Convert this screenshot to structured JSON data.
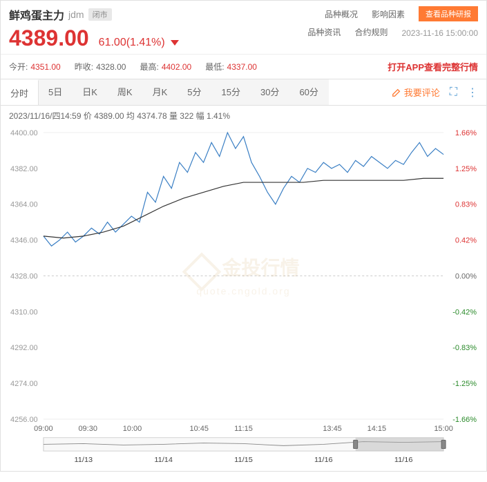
{
  "header": {
    "name": "鲜鸡蛋主力",
    "code": "jdm",
    "status": "闭市",
    "price": "4389.00",
    "change": "61.00(1.41%)",
    "price_color": "#d33",
    "links": {
      "variety": "品种概况",
      "factors": "影响因素",
      "news": "品种资讯",
      "rules": "合约规则"
    },
    "report_btn": "查看品种研报",
    "timestamp": "2023-11-16 15:00:00"
  },
  "stats": {
    "open_label": "今开:",
    "open_val": "4351.00",
    "prev_label": "昨收:",
    "prev_val": "4328.00",
    "high_label": "最高:",
    "high_val": "4402.00",
    "low_label": "最低:",
    "low_val": "4337.00",
    "open_color": "#d33",
    "prev_color": "#666",
    "high_color": "#d33",
    "low_color": "#d33",
    "app_promo": "打开APP查看完整行情",
    "app_color": "#d33"
  },
  "tabs": {
    "items": [
      "分时",
      "5日",
      "日K",
      "周K",
      "月K",
      "5分",
      "15分",
      "30分",
      "60分"
    ],
    "active": 0,
    "comment": "我要评论"
  },
  "chart_info": "2023/11/16/四14:59  价 4389.00  均 4374.78  量 322  幅 1.41%",
  "chart": {
    "type": "line",
    "y_left": [
      "4400.00",
      "4382.00",
      "4364.00",
      "4346.00",
      "4328.00",
      "4310.00",
      "4292.00",
      "4274.00",
      "4256.00"
    ],
    "y_right": [
      "1.66%",
      "1.25%",
      "0.83%",
      "0.42%",
      "0.00%",
      "-0.42%",
      "-0.83%",
      "-1.25%",
      "-1.66%"
    ],
    "y_min": 4256,
    "y_max": 4400,
    "x_labels": [
      "09:00",
      "09:30",
      "10:00",
      "10:45",
      "11:15",
      "13:45",
      "14:15",
      "15:00"
    ],
    "x_positions": [
      0,
      0.111,
      0.222,
      0.389,
      0.5,
      0.722,
      0.833,
      1.0
    ],
    "price_color": "#3a7fc4",
    "avg_color": "#333",
    "price_series": [
      [
        0,
        4348
      ],
      [
        0.02,
        4343
      ],
      [
        0.04,
        4346
      ],
      [
        0.06,
        4350
      ],
      [
        0.08,
        4345
      ],
      [
        0.1,
        4348
      ],
      [
        0.12,
        4352
      ],
      [
        0.14,
        4349
      ],
      [
        0.16,
        4355
      ],
      [
        0.18,
        4350
      ],
      [
        0.2,
        4354
      ],
      [
        0.22,
        4358
      ],
      [
        0.24,
        4355
      ],
      [
        0.26,
        4370
      ],
      [
        0.28,
        4365
      ],
      [
        0.3,
        4378
      ],
      [
        0.32,
        4372
      ],
      [
        0.34,
        4385
      ],
      [
        0.36,
        4380
      ],
      [
        0.38,
        4390
      ],
      [
        0.4,
        4385
      ],
      [
        0.42,
        4395
      ],
      [
        0.44,
        4388
      ],
      [
        0.46,
        4400
      ],
      [
        0.48,
        4392
      ],
      [
        0.5,
        4398
      ],
      [
        0.52,
        4385
      ],
      [
        0.54,
        4378
      ],
      [
        0.56,
        4370
      ],
      [
        0.58,
        4364
      ],
      [
        0.6,
        4372
      ],
      [
        0.62,
        4378
      ],
      [
        0.64,
        4375
      ],
      [
        0.66,
        4382
      ],
      [
        0.68,
        4380
      ],
      [
        0.7,
        4385
      ],
      [
        0.72,
        4382
      ],
      [
        0.74,
        4384
      ],
      [
        0.76,
        4380
      ],
      [
        0.78,
        4386
      ],
      [
        0.8,
        4383
      ],
      [
        0.82,
        4388
      ],
      [
        0.84,
        4385
      ],
      [
        0.86,
        4382
      ],
      [
        0.88,
        4386
      ],
      [
        0.9,
        4384
      ],
      [
        0.92,
        4390
      ],
      [
        0.94,
        4395
      ],
      [
        0.96,
        4388
      ],
      [
        0.98,
        4392
      ],
      [
        1.0,
        4389
      ]
    ],
    "avg_series": [
      [
        0,
        4348
      ],
      [
        0.05,
        4347
      ],
      [
        0.1,
        4348
      ],
      [
        0.15,
        4350
      ],
      [
        0.2,
        4353
      ],
      [
        0.25,
        4358
      ],
      [
        0.3,
        4363
      ],
      [
        0.35,
        4367
      ],
      [
        0.4,
        4370
      ],
      [
        0.45,
        4373
      ],
      [
        0.5,
        4375
      ],
      [
        0.55,
        4375
      ],
      [
        0.6,
        4375
      ],
      [
        0.65,
        4375
      ],
      [
        0.7,
        4376
      ],
      [
        0.75,
        4376
      ],
      [
        0.8,
        4376
      ],
      [
        0.85,
        4376
      ],
      [
        0.9,
        4376
      ],
      [
        0.95,
        4377
      ],
      [
        1.0,
        4377
      ]
    ]
  },
  "nav": {
    "dates": [
      "11/13",
      "11/14",
      "11/15",
      "11/16",
      "11/16"
    ],
    "sel_start": 0.78,
    "sel_end": 1.0,
    "line": [
      [
        0,
        0.5
      ],
      [
        0.1,
        0.45
      ],
      [
        0.2,
        0.55
      ],
      [
        0.3,
        0.5
      ],
      [
        0.4,
        0.4
      ],
      [
        0.5,
        0.45
      ],
      [
        0.6,
        0.6
      ],
      [
        0.7,
        0.5
      ],
      [
        0.8,
        0.3
      ],
      [
        0.9,
        0.35
      ],
      [
        1.0,
        0.3
      ]
    ]
  },
  "watermark": {
    "main": "金投行情",
    "sub": "quote.cngold.org"
  }
}
